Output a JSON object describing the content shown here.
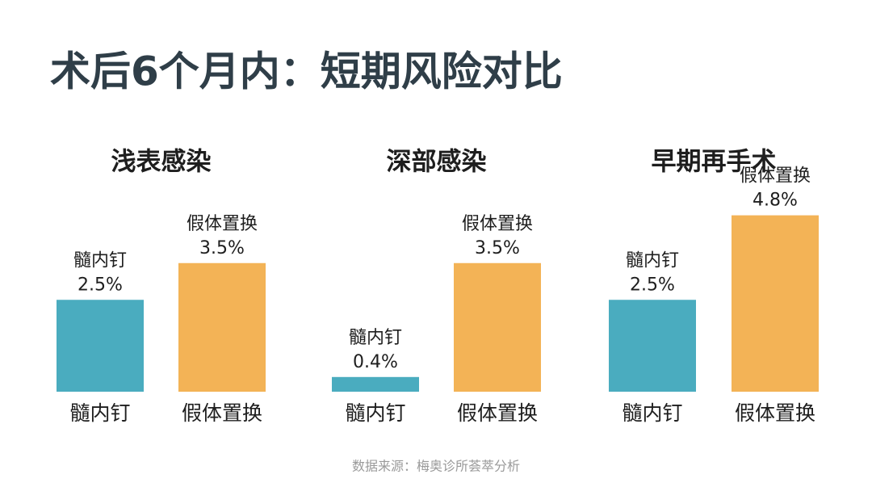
{
  "title": "术后6个月内：短期风险对比",
  "source": "数据来源：梅奥诊所荟萃分析",
  "chart_data": [
    {
      "type": "bar",
      "title": "浅表感染",
      "categories": [
        "髓内钉",
        "假体置换"
      ],
      "values": [
        2.5,
        3.5
      ],
      "value_labels": [
        "2.5%",
        "3.5%"
      ],
      "colors": [
        "#4aacbf",
        "#f3b356"
      ]
    },
    {
      "type": "bar",
      "title": "深部感染",
      "categories": [
        "髓内钉",
        "假体置换"
      ],
      "values": [
        0.4,
        3.5
      ],
      "value_labels": [
        "0.4%",
        "3.5%"
      ],
      "colors": [
        "#4aacbf",
        "#f3b356"
      ]
    },
    {
      "type": "bar",
      "title": "早期再手术",
      "categories": [
        "髓内钉",
        "假体置换"
      ],
      "values": [
        2.5,
        4.8
      ],
      "value_labels": [
        "2.5%",
        "4.8%"
      ],
      "colors": [
        "#4aacbf",
        "#f3b356"
      ]
    }
  ]
}
